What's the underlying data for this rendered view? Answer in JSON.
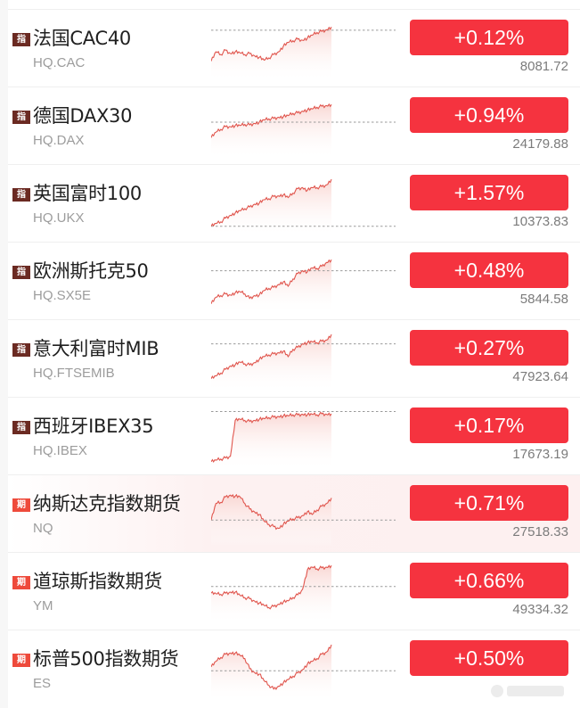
{
  "colors": {
    "up_badge": "#f5333f",
    "index_tag": "#6b2a22",
    "future_tag": "#ee4a3b",
    "sparkline_line": "#e0554d",
    "sparkline_fill": "#f9d6d2",
    "baseline_dots": "#9a9a9a"
  },
  "tags": {
    "index": "指",
    "future": "期"
  },
  "rows": [
    {
      "tag": "指",
      "type": "index",
      "name": "法国CAC40",
      "code": "HQ.CAC",
      "change": "+0.12%",
      "price": "8081.72"
    },
    {
      "tag": "指",
      "type": "index",
      "name": "德国DAX30",
      "code": "HQ.DAX",
      "change": "+0.94%",
      "price": "24179.88"
    },
    {
      "tag": "指",
      "type": "index",
      "name": "英国富时100",
      "code": "HQ.UKX",
      "change": "+1.57%",
      "price": "10373.83"
    },
    {
      "tag": "指",
      "type": "index",
      "name": "欧洲斯托克50",
      "code": "HQ.SX5E",
      "change": "+0.48%",
      "price": "5844.58"
    },
    {
      "tag": "指",
      "type": "index",
      "name": "意大利富时MIB",
      "code": "HQ.FTSEMIB",
      "change": "+0.27%",
      "price": "47923.64"
    },
    {
      "tag": "指",
      "type": "index",
      "name": "西班牙IBEX35",
      "code": "HQ.IBEX",
      "change": "+0.17%",
      "price": "17673.19"
    },
    {
      "tag": "期",
      "type": "future",
      "name": "纳斯达克指数期货",
      "code": "NQ",
      "change": "+0.71%",
      "price": "27518.33"
    },
    {
      "tag": "期",
      "type": "future",
      "name": "道琼斯指数期货",
      "code": "YM",
      "change": "+0.66%",
      "price": "49334.32"
    },
    {
      "tag": "期",
      "type": "future",
      "name": "标普500指数期货",
      "code": "ES",
      "change": "+0.50%",
      "price": ""
    }
  ],
  "sparklines": [
    {
      "baseline": 0.16,
      "points": [
        0.72,
        0.55,
        0.6,
        0.52,
        0.58,
        0.55,
        0.57,
        0.6,
        0.58,
        0.62,
        0.65,
        0.7,
        0.66,
        0.6,
        0.55,
        0.45,
        0.38,
        0.35,
        0.32,
        0.34,
        0.3,
        0.25,
        0.2,
        0.18,
        0.15,
        0.1
      ]
    },
    {
      "baseline": 0.42,
      "points": [
        0.7,
        0.6,
        0.55,
        0.5,
        0.5,
        0.48,
        0.48,
        0.46,
        0.47,
        0.44,
        0.42,
        0.38,
        0.36,
        0.35,
        0.33,
        0.32,
        0.3,
        0.26,
        0.25,
        0.22,
        0.2,
        0.18,
        0.15,
        0.13,
        0.12,
        0.1
      ]
    },
    {
      "baseline": 0.9,
      "points": [
        0.9,
        0.85,
        0.82,
        0.75,
        0.7,
        0.66,
        0.62,
        0.58,
        0.55,
        0.5,
        0.48,
        0.42,
        0.4,
        0.36,
        0.35,
        0.33,
        0.38,
        0.3,
        0.22,
        0.2,
        0.25,
        0.2,
        0.2,
        0.18,
        0.15,
        0.05
      ]
    },
    {
      "baseline": 0.3,
      "points": [
        0.9,
        0.78,
        0.75,
        0.72,
        0.74,
        0.7,
        0.68,
        0.72,
        0.8,
        0.75,
        0.74,
        0.66,
        0.62,
        0.6,
        0.55,
        0.5,
        0.58,
        0.45,
        0.35,
        0.3,
        0.32,
        0.25,
        0.26,
        0.22,
        0.15,
        0.1
      ]
    },
    {
      "baseline": 0.22,
      "points": [
        0.85,
        0.8,
        0.75,
        0.68,
        0.62,
        0.6,
        0.55,
        0.58,
        0.6,
        0.56,
        0.5,
        0.45,
        0.42,
        0.4,
        0.38,
        0.35,
        0.45,
        0.32,
        0.28,
        0.22,
        0.2,
        0.18,
        0.2,
        0.17,
        0.15,
        0.05
      ]
    },
    {
      "baseline": 0.04,
      "points": [
        0.95,
        0.92,
        0.9,
        0.88,
        0.85,
        0.2,
        0.18,
        0.2,
        0.22,
        0.2,
        0.18,
        0.17,
        0.15,
        0.14,
        0.13,
        0.12,
        0.12,
        0.1,
        0.1,
        0.09,
        0.1,
        0.09,
        0.1,
        0.08,
        0.09,
        0.08
      ]
    },
    {
      "baseline": 0.6,
      "points": [
        0.6,
        0.3,
        0.28,
        0.18,
        0.15,
        0.17,
        0.18,
        0.3,
        0.4,
        0.45,
        0.5,
        0.62,
        0.68,
        0.72,
        0.75,
        0.68,
        0.62,
        0.58,
        0.56,
        0.52,
        0.45,
        0.5,
        0.42,
        0.35,
        0.3,
        0.2
      ]
    },
    {
      "baseline": 0.4,
      "points": [
        0.52,
        0.53,
        0.54,
        0.52,
        0.5,
        0.5,
        0.56,
        0.6,
        0.62,
        0.66,
        0.7,
        0.74,
        0.78,
        0.76,
        0.72,
        0.68,
        0.66,
        0.6,
        0.55,
        0.45,
        0.1,
        0.05,
        0.08,
        0.06,
        0.05,
        0.02
      ]
    },
    {
      "baseline": 0.52,
      "points": [
        0.45,
        0.35,
        0.28,
        0.22,
        0.2,
        0.2,
        0.24,
        0.3,
        0.48,
        0.55,
        0.58,
        0.7,
        0.78,
        0.85,
        0.8,
        0.74,
        0.68,
        0.62,
        0.56,
        0.5,
        0.4,
        0.35,
        0.3,
        0.22,
        0.18,
        0.05
      ]
    }
  ]
}
